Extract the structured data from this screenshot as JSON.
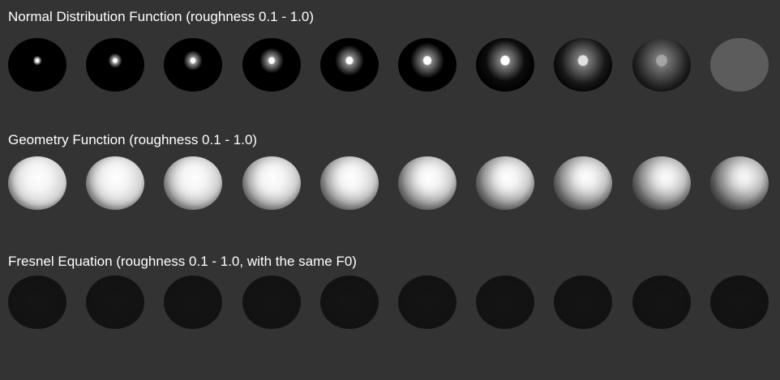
{
  "sections": [
    {
      "id": "ndf",
      "title": "Normal Distribution Function (roughness 0.1 - 1.0)",
      "roughness": [
        0.1,
        0.2,
        0.3,
        0.4,
        0.5,
        0.6,
        0.7,
        0.8,
        0.9,
        1.0
      ]
    },
    {
      "id": "geo",
      "title": "Geometry Function (roughness 0.1 - 1.0)",
      "roughness": [
        0.1,
        0.2,
        0.3,
        0.4,
        0.5,
        0.6,
        0.7,
        0.8,
        0.9,
        1.0
      ]
    },
    {
      "id": "fresnel",
      "title": "Fresnel Equation (roughness 0.1 - 1.0, with the same F0)",
      "roughness": [
        0.1,
        0.2,
        0.3,
        0.4,
        0.5,
        0.6,
        0.7,
        0.8,
        0.9,
        1.0
      ]
    }
  ],
  "colors": {
    "background": "#333333",
    "title": "#ffffff",
    "sphere_base": "#000000",
    "ndf_flat": "#5c5c5c"
  }
}
